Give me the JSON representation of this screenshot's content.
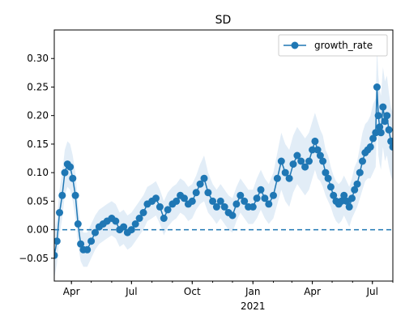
{
  "chart_data": {
    "type": "line",
    "title": "SD",
    "xlabel": "",
    "ylabel": "",
    "x_start": "2020-03-06",
    "x_end": "2021-08-01",
    "xticks": [
      {
        "date": "2020-04-01",
        "label": "Apr"
      },
      {
        "date": "2020-07-01",
        "label": "Jul"
      },
      {
        "date": "2020-10-01",
        "label": "Oct"
      },
      {
        "date": "2021-01-01",
        "label": "Jan"
      },
      {
        "date": "2021-04-01",
        "label": "Apr"
      },
      {
        "date": "2021-07-01",
        "label": "Jul"
      }
    ],
    "xtick_year_label": {
      "date": "2021-01-01",
      "label": "2021"
    },
    "ylim": [
      -0.09,
      0.35
    ],
    "yticks": [
      -0.05,
      0.0,
      0.05,
      0.1,
      0.15,
      0.2,
      0.25,
      0.3
    ],
    "ytick_labels": [
      "−0.05",
      "0.00",
      "0.05",
      "0.10",
      "0.15",
      "0.20",
      "0.25",
      "0.30"
    ],
    "reference_line": {
      "y": 0.0,
      "style": "dashed",
      "color": "#1f77b4"
    },
    "legend_position": "top-right",
    "series": [
      {
        "name": "growth_rate",
        "color": "#1f77b4",
        "band_color": "#dbe8f5",
        "points": [
          [
            "2020-03-06",
            -0.045,
            0.04
          ],
          [
            "2020-03-10",
            -0.02,
            0.04
          ],
          [
            "2020-03-14",
            0.03,
            0.04
          ],
          [
            "2020-03-18",
            0.06,
            0.04
          ],
          [
            "2020-03-22",
            0.1,
            0.04
          ],
          [
            "2020-03-26",
            0.115,
            0.04
          ],
          [
            "2020-03-30",
            0.11,
            0.04
          ],
          [
            "2020-04-03",
            0.09,
            0.04
          ],
          [
            "2020-04-07",
            0.06,
            0.04
          ],
          [
            "2020-04-11",
            0.01,
            0.035
          ],
          [
            "2020-04-15",
            -0.025,
            0.03
          ],
          [
            "2020-04-19",
            -0.035,
            0.03
          ],
          [
            "2020-04-25",
            -0.035,
            0.03
          ],
          [
            "2020-05-01",
            -0.02,
            0.03
          ],
          [
            "2020-05-07",
            -0.005,
            0.03
          ],
          [
            "2020-05-13",
            0.005,
            0.03
          ],
          [
            "2020-05-19",
            0.01,
            0.03
          ],
          [
            "2020-05-25",
            0.015,
            0.03
          ],
          [
            "2020-06-01",
            0.02,
            0.03
          ],
          [
            "2020-06-07",
            0.015,
            0.03
          ],
          [
            "2020-06-13",
            0.0,
            0.03
          ],
          [
            "2020-06-19",
            0.005,
            0.03
          ],
          [
            "2020-06-25",
            -0.005,
            0.03
          ],
          [
            "2020-07-01",
            0.0,
            0.03
          ],
          [
            "2020-07-07",
            0.01,
            0.03
          ],
          [
            "2020-07-13",
            0.02,
            0.03
          ],
          [
            "2020-07-19",
            0.03,
            0.03
          ],
          [
            "2020-07-25",
            0.045,
            0.03
          ],
          [
            "2020-08-01",
            0.05,
            0.03
          ],
          [
            "2020-08-07",
            0.055,
            0.03
          ],
          [
            "2020-08-13",
            0.04,
            0.03
          ],
          [
            "2020-08-19",
            0.02,
            0.03
          ],
          [
            "2020-08-25",
            0.035,
            0.03
          ],
          [
            "2020-09-01",
            0.045,
            0.03
          ],
          [
            "2020-09-07",
            0.05,
            0.03
          ],
          [
            "2020-09-13",
            0.06,
            0.03
          ],
          [
            "2020-09-19",
            0.055,
            0.03
          ],
          [
            "2020-09-25",
            0.045,
            0.03
          ],
          [
            "2020-10-01",
            0.05,
            0.03
          ],
          [
            "2020-10-07",
            0.065,
            0.03
          ],
          [
            "2020-10-13",
            0.08,
            0.035
          ],
          [
            "2020-10-19",
            0.09,
            0.04
          ],
          [
            "2020-10-25",
            0.065,
            0.035
          ],
          [
            "2020-11-01",
            0.05,
            0.03
          ],
          [
            "2020-11-07",
            0.04,
            0.03
          ],
          [
            "2020-11-13",
            0.05,
            0.03
          ],
          [
            "2020-11-19",
            0.04,
            0.03
          ],
          [
            "2020-11-25",
            0.03,
            0.03
          ],
          [
            "2020-12-01",
            0.025,
            0.03
          ],
          [
            "2020-12-07",
            0.045,
            0.03
          ],
          [
            "2020-12-13",
            0.06,
            0.03
          ],
          [
            "2020-12-19",
            0.05,
            0.03
          ],
          [
            "2020-12-25",
            0.04,
            0.03
          ],
          [
            "2021-01-01",
            0.04,
            0.03
          ],
          [
            "2021-01-07",
            0.055,
            0.035
          ],
          [
            "2021-01-13",
            0.07,
            0.035
          ],
          [
            "2021-01-19",
            0.055,
            0.035
          ],
          [
            "2021-01-25",
            0.045,
            0.035
          ],
          [
            "2021-02-01",
            0.06,
            0.04
          ],
          [
            "2021-02-07",
            0.09,
            0.045
          ],
          [
            "2021-02-13",
            0.12,
            0.05
          ],
          [
            "2021-02-19",
            0.1,
            0.05
          ],
          [
            "2021-02-25",
            0.09,
            0.05
          ],
          [
            "2021-03-03",
            0.115,
            0.05
          ],
          [
            "2021-03-09",
            0.13,
            0.05
          ],
          [
            "2021-03-15",
            0.12,
            0.05
          ],
          [
            "2021-03-21",
            0.11,
            0.05
          ],
          [
            "2021-03-27",
            0.12,
            0.05
          ],
          [
            "2021-04-01",
            0.14,
            0.05
          ],
          [
            "2021-04-05",
            0.155,
            0.05
          ],
          [
            "2021-04-09",
            0.14,
            0.05
          ],
          [
            "2021-04-13",
            0.13,
            0.045
          ],
          [
            "2021-04-17",
            0.12,
            0.045
          ],
          [
            "2021-04-21",
            0.1,
            0.04
          ],
          [
            "2021-04-25",
            0.09,
            0.04
          ],
          [
            "2021-04-29",
            0.075,
            0.035
          ],
          [
            "2021-05-03",
            0.06,
            0.035
          ],
          [
            "2021-05-07",
            0.05,
            0.035
          ],
          [
            "2021-05-11",
            0.045,
            0.035
          ],
          [
            "2021-05-15",
            0.05,
            0.035
          ],
          [
            "2021-05-19",
            0.06,
            0.035
          ],
          [
            "2021-05-23",
            0.05,
            0.035
          ],
          [
            "2021-05-27",
            0.04,
            0.035
          ],
          [
            "2021-05-31",
            0.055,
            0.035
          ],
          [
            "2021-06-04",
            0.07,
            0.04
          ],
          [
            "2021-06-08",
            0.08,
            0.04
          ],
          [
            "2021-06-12",
            0.1,
            0.045
          ],
          [
            "2021-06-16",
            0.12,
            0.05
          ],
          [
            "2021-06-20",
            0.135,
            0.05
          ],
          [
            "2021-06-24",
            0.14,
            0.05
          ],
          [
            "2021-06-28",
            0.145,
            0.055
          ],
          [
            "2021-07-02",
            0.16,
            0.06
          ],
          [
            "2021-07-06",
            0.17,
            0.06
          ],
          [
            "2021-07-08",
            0.25,
            0.07
          ],
          [
            "2021-07-10",
            0.2,
            0.07
          ],
          [
            "2021-07-12",
            0.18,
            0.065
          ],
          [
            "2021-07-14",
            0.17,
            0.065
          ],
          [
            "2021-07-17",
            0.215,
            0.07
          ],
          [
            "2021-07-20",
            0.19,
            0.07
          ],
          [
            "2021-07-23",
            0.2,
            0.07
          ],
          [
            "2021-07-26",
            0.175,
            0.065
          ],
          [
            "2021-07-29",
            0.155,
            0.06
          ],
          [
            "2021-08-01",
            0.145,
            0.06
          ]
        ]
      }
    ]
  }
}
